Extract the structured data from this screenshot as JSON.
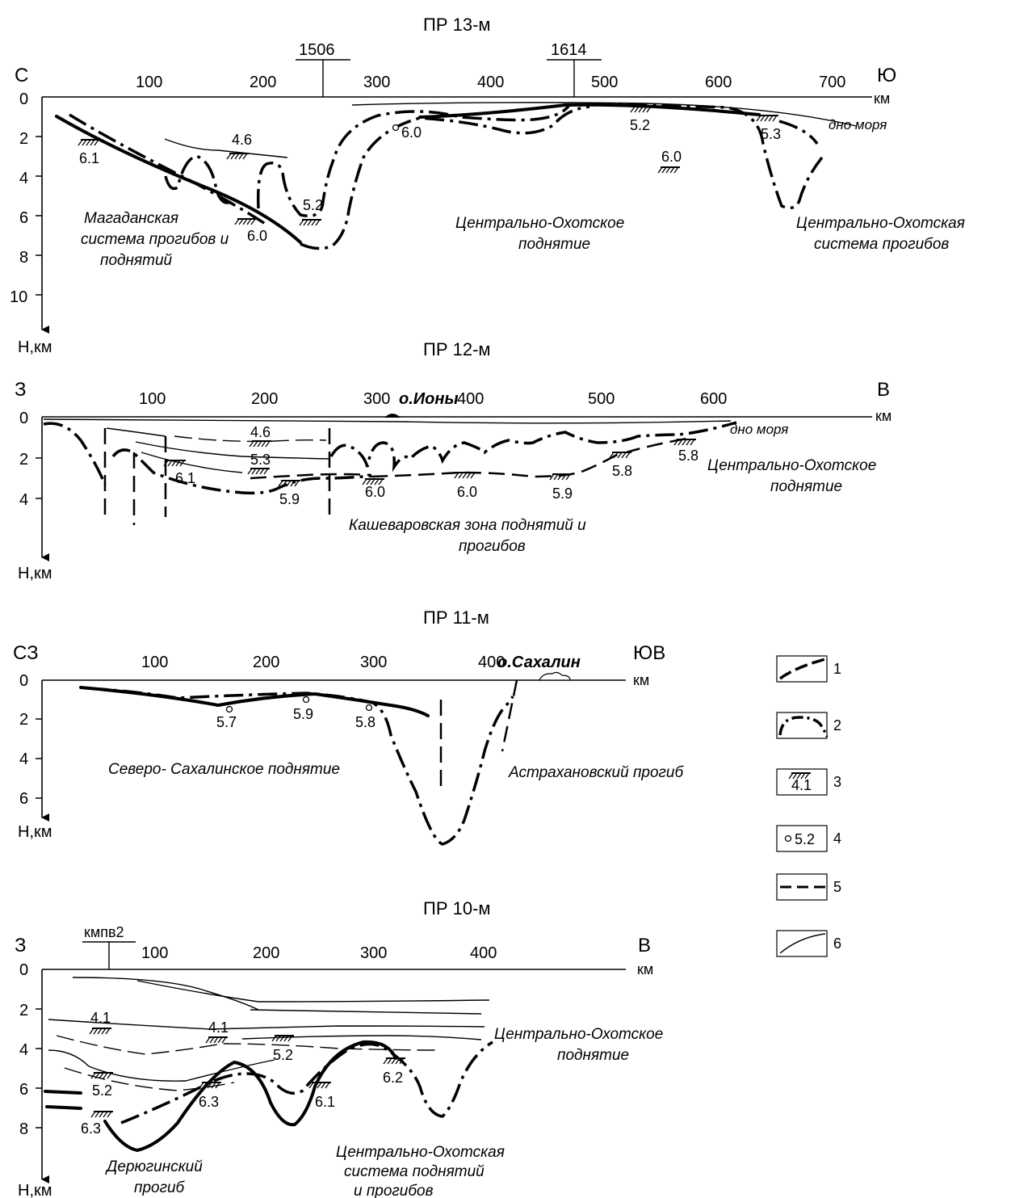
{
  "profiles": [
    {
      "title": "ПР 13-м",
      "dir_left": "С",
      "dir_right": "Ю",
      "x_ticks": [
        "100",
        "200",
        "300",
        "400",
        "500",
        "600",
        "700"
      ],
      "y_ticks": [
        "0",
        "2",
        "4",
        "6",
        "8",
        "10"
      ],
      "axis_unit_x": "км",
      "axis_unit_y": "Н,км",
      "stations": [
        "1506",
        "1614"
      ],
      "seafloor_label": "дно моря",
      "values": [
        "6.1",
        "4.6",
        "5.2",
        "6.0",
        "6.0",
        "5.2",
        "5.3",
        "6.0"
      ],
      "regions": [
        [
          "Магаданская",
          "система прогибов и",
          "поднятий"
        ],
        [
          "Центрально-Охотское",
          "поднятие"
        ],
        [
          "Центрально-Охотская",
          "система прогибов"
        ]
      ]
    },
    {
      "title": "ПР 12-м",
      "dir_left": "З",
      "dir_right": "В",
      "x_ticks": [
        "100",
        "200",
        "300",
        "400",
        "500",
        "600"
      ],
      "y_ticks": [
        "0",
        "2",
        "4"
      ],
      "axis_unit_x": "км",
      "axis_unit_y": "Н,км",
      "island": "о.Ионы",
      "seafloor_label": "дно  моря",
      "values": [
        "4.6",
        "5.3",
        "6.1",
        "5.9",
        "6.0",
        "6.0",
        "5.9",
        "5.8",
        "5.8"
      ],
      "regions": [
        [
          "Центрально-Охотское",
          "поднятие"
        ],
        [
          "Кашеваровская зона поднятий и",
          "прогибов"
        ]
      ]
    },
    {
      "title": "ПР 11-м",
      "dir_left": "СЗ",
      "dir_right": "ЮВ",
      "x_ticks": [
        "100",
        "200",
        "300",
        "400"
      ],
      "y_ticks": [
        "0",
        "2",
        "4",
        "6"
      ],
      "axis_unit_x": "км",
      "axis_unit_y": "Н,км",
      "island": "о.Сахалин",
      "values": [
        "5.7",
        "5.9",
        "5.8"
      ],
      "regions": [
        [
          "Северо- Сахалинское поднятие"
        ],
        [
          "Астрахановский прогиб"
        ]
      ]
    },
    {
      "title": "ПР 10-м",
      "dir_left": "З",
      "dir_right": "В",
      "x_ticks": [
        "100",
        "200",
        "300",
        "400"
      ],
      "y_ticks": [
        "0",
        "2",
        "4",
        "6",
        "8"
      ],
      "axis_unit_x": "км",
      "axis_unit_y": "Н,км",
      "station": "кмпв2",
      "values": [
        "4.1",
        "4.1",
        "5.2",
        "5.2",
        "6.3",
        "6.1",
        "6.2",
        "6.3"
      ],
      "regions": [
        [
          "Центрально-Охотское",
          "поднятие"
        ],
        [
          "Дерюгинский",
          "прогиб"
        ],
        [
          "Центрально-Охотская",
          "система поднятий",
          "и прогибов"
        ]
      ]
    }
  ],
  "legend": [
    {
      "number": "1",
      "sample": ""
    },
    {
      "number": "2",
      "sample": ""
    },
    {
      "number": "3",
      "sample": "4.1"
    },
    {
      "number": "4",
      "sample": "5.2"
    },
    {
      "number": "5",
      "sample": ""
    },
    {
      "number": "6",
      "sample": ""
    }
  ]
}
